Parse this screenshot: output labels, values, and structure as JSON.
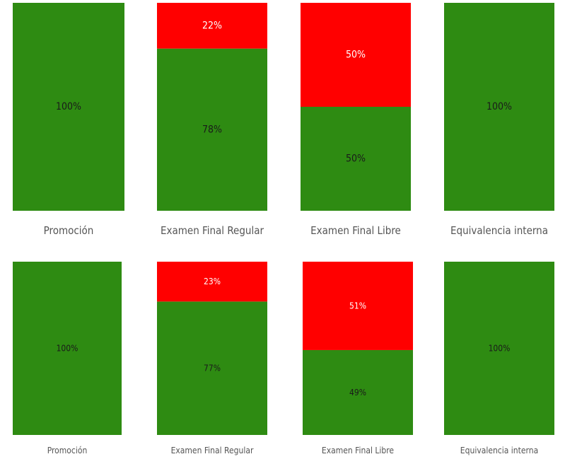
{
  "colors": {
    "pass": "#2e8b12",
    "fail": "#ff0000",
    "pass_label": "#1a1a1a",
    "fail_label": "#ffffff",
    "category_label": "#555555"
  },
  "chart_data": [
    {
      "type": "bar",
      "stacked": true,
      "normalized": true,
      "categories": [
        "Promoción",
        "Examen Final Regular",
        "Examen Final Libre",
        "Equivalencia interna"
      ],
      "series": [
        {
          "key": "pass",
          "values": [
            100,
            78,
            50,
            100
          ],
          "labels": [
            "100%",
            "78%",
            "50%",
            "100%"
          ]
        },
        {
          "key": "fail",
          "values": [
            0,
            22,
            50,
            0
          ],
          "labels": [
            "",
            "22%",
            "50%",
            ""
          ]
        }
      ],
      "ylim": [
        0,
        100
      ],
      "grid": false,
      "legend": "none"
    },
    {
      "type": "bar",
      "stacked": true,
      "normalized": true,
      "categories": [
        "Promoción",
        "Examen Final Regular",
        "Examen Final Libre",
        "Equivalencia interna"
      ],
      "series": [
        {
          "key": "pass",
          "values": [
            100,
            77,
            49,
            100
          ],
          "labels": [
            "100%",
            "77%",
            "49%",
            "100%"
          ]
        },
        {
          "key": "fail",
          "values": [
            0,
            23,
            51,
            0
          ],
          "labels": [
            "",
            "23%",
            "51%",
            ""
          ]
        }
      ],
      "ylim": [
        0,
        100
      ],
      "grid": false,
      "legend": "none"
    }
  ]
}
